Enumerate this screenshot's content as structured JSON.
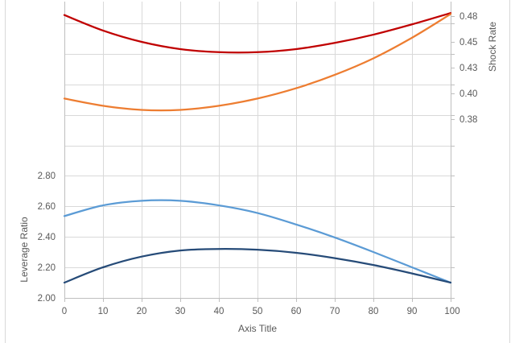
{
  "chart_data": {
    "type": "line",
    "xlabel": "Axis Title",
    "ylabel_left": "Leverage Ratio",
    "ylabel_right": "Shock Rate",
    "x_ticks": [
      0,
      10,
      20,
      30,
      40,
      50,
      60,
      70,
      80,
      90,
      100
    ],
    "xlim": [
      0,
      100
    ],
    "left_axis": {
      "ticks": [
        "2.00",
        "2.20",
        "2.40",
        "2.60",
        "2.80"
      ],
      "tick_values": [
        2.0,
        2.2,
        2.4,
        2.6,
        2.8
      ]
    },
    "right_axis": {
      "ticks": [
        "0.38",
        "0.40",
        "0.43",
        "0.45",
        "0.48"
      ],
      "tick_values": [
        0.375,
        0.4,
        0.425,
        0.45,
        0.475
      ]
    },
    "grid": true,
    "series": [
      {
        "axis": "right",
        "color": "#c00000",
        "x": [
          0,
          10,
          20,
          30,
          40,
          50,
          60,
          70,
          80,
          90,
          100
        ],
        "values": [
          0.476,
          0.461,
          0.45,
          0.443,
          0.44,
          0.44,
          0.443,
          0.449,
          0.457,
          0.467,
          0.478
        ]
      },
      {
        "axis": "right",
        "color": "#ed7d31",
        "x": [
          0,
          10,
          20,
          30,
          40,
          50,
          60,
          70,
          80,
          90,
          100
        ],
        "values": [
          0.395,
          0.388,
          0.384,
          0.384,
          0.388,
          0.395,
          0.405,
          0.418,
          0.434,
          0.454,
          0.477
        ]
      },
      {
        "axis": "left",
        "color": "#5b9bd5",
        "x": [
          0,
          10,
          20,
          30,
          40,
          50,
          60,
          70,
          80,
          90,
          100
        ],
        "values": [
          2.535,
          2.605,
          2.635,
          2.635,
          2.605,
          2.555,
          2.48,
          2.395,
          2.3,
          2.2,
          2.1
        ]
      },
      {
        "axis": "left",
        "color": "#264b78",
        "x": [
          0,
          10,
          20,
          30,
          40,
          50,
          60,
          70,
          80,
          90,
          100
        ],
        "values": [
          2.1,
          2.2,
          2.27,
          2.31,
          2.32,
          2.315,
          2.295,
          2.26,
          2.215,
          2.16,
          2.1
        ]
      }
    ]
  }
}
